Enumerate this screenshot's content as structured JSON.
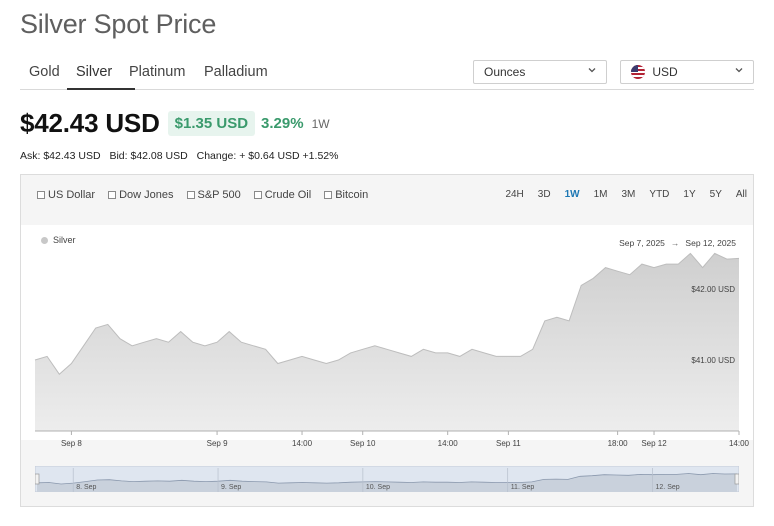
{
  "page": {
    "title": "Silver Spot Price"
  },
  "tabs": [
    {
      "label": "Gold",
      "active": false
    },
    {
      "label": "Silver",
      "active": true
    },
    {
      "label": "Platinum",
      "active": false
    },
    {
      "label": "Palladium",
      "active": false
    }
  ],
  "unit_select": {
    "value": "Ounces",
    "icon": "chevron-down-icon"
  },
  "currency_select": {
    "value": "USD",
    "icon": "us-flag-icon"
  },
  "price": {
    "main": "$42.43 USD",
    "change_amount": "$1.35 USD",
    "change_percent": "3.29%",
    "period": "1W",
    "positive_color": "#3a9a6c"
  },
  "quote": {
    "ask": "Ask: $42.43 USD",
    "bid": "Bid: $42.08 USD",
    "change": "Change: + $0.64 USD +1.52%"
  },
  "compare": [
    {
      "label": "US Dollar",
      "checked": false
    },
    {
      "label": "Dow Jones",
      "checked": false
    },
    {
      "label": "S&P 500",
      "checked": false
    },
    {
      "label": "Crude Oil",
      "checked": false
    },
    {
      "label": "Bitcoin",
      "checked": false
    }
  ],
  "ranges": [
    {
      "label": "24H",
      "active": false
    },
    {
      "label": "3D",
      "active": false
    },
    {
      "label": "1W",
      "active": true
    },
    {
      "label": "1M",
      "active": false
    },
    {
      "label": "3M",
      "active": false
    },
    {
      "label": "YTD",
      "active": false
    },
    {
      "label": "1Y",
      "active": false
    },
    {
      "label": "5Y",
      "active": false
    },
    {
      "label": "All",
      "active": false
    }
  ],
  "accent_color": "#1e78b4",
  "chart_data": {
    "type": "area",
    "series": [
      {
        "name": "Silver",
        "color": "#d4d4d4",
        "x": [
          "2025-09-07 18:00",
          "2025-09-07 20:00",
          "2025-09-07 22:00",
          "2025-09-08 00:00",
          "2025-09-08 02:00",
          "2025-09-08 04:00",
          "2025-09-08 06:00",
          "2025-09-08 08:00",
          "2025-09-08 10:00",
          "2025-09-08 12:00",
          "2025-09-08 14:00",
          "2025-09-08 16:00",
          "2025-09-08 18:00",
          "2025-09-08 20:00",
          "2025-09-08 22:00",
          "2025-09-09 00:00",
          "2025-09-09 02:00",
          "2025-09-09 04:00",
          "2025-09-09 06:00",
          "2025-09-09 08:00",
          "2025-09-09 10:00",
          "2025-09-09 12:00",
          "2025-09-09 14:00",
          "2025-09-09 16:00",
          "2025-09-09 18:00",
          "2025-09-09 20:00",
          "2025-09-09 22:00",
          "2025-09-10 00:00",
          "2025-09-10 02:00",
          "2025-09-10 04:00",
          "2025-09-10 06:00",
          "2025-09-10 08:00",
          "2025-09-10 10:00",
          "2025-09-10 12:00",
          "2025-09-10 14:00",
          "2025-09-10 16:00",
          "2025-09-10 18:00",
          "2025-09-10 20:00",
          "2025-09-10 22:00",
          "2025-09-11 00:00",
          "2025-09-11 02:00",
          "2025-09-11 04:00",
          "2025-09-11 06:00",
          "2025-09-11 08:00",
          "2025-09-11 10:00",
          "2025-09-11 12:00",
          "2025-09-11 14:00",
          "2025-09-11 16:00",
          "2025-09-11 18:00",
          "2025-09-11 20:00",
          "2025-09-11 22:00",
          "2025-09-12 00:00",
          "2025-09-12 02:00",
          "2025-09-12 04:00",
          "2025-09-12 06:00",
          "2025-09-12 08:00",
          "2025-09-12 10:00",
          "2025-09-12 12:00",
          "2025-09-12 14:00"
        ],
        "values": [
          41.0,
          41.05,
          40.8,
          40.95,
          41.2,
          41.45,
          41.5,
          41.3,
          41.2,
          41.25,
          41.3,
          41.25,
          41.4,
          41.25,
          41.2,
          41.25,
          41.4,
          41.25,
          41.2,
          41.15,
          40.95,
          41.0,
          41.05,
          41.0,
          40.95,
          41.0,
          41.1,
          41.15,
          41.2,
          41.15,
          41.1,
          41.05,
          41.15,
          41.1,
          41.1,
          41.05,
          41.15,
          41.1,
          41.05,
          41.05,
          41.05,
          41.15,
          41.55,
          41.6,
          41.55,
          42.05,
          42.15,
          42.3,
          42.25,
          42.2,
          42.35,
          42.3,
          42.35,
          42.35,
          42.5,
          42.3,
          42.5,
          42.42,
          42.43
        ]
      }
    ],
    "x_tick_labels": [
      "Sep 8",
      "Sep 9",
      "14:00",
      "Sep 10",
      "14:00",
      "Sep 11",
      "18:00",
      "Sep 12",
      "14:00"
    ],
    "x_tick_times": [
      "2025-09-08 00:00",
      "2025-09-09 00:00",
      "2025-09-09 14:00",
      "2025-09-10 00:00",
      "2025-09-10 14:00",
      "2025-09-11 00:00",
      "2025-09-11 18:00",
      "2025-09-12 00:00",
      "2025-09-12 14:00"
    ],
    "y_tick_labels": [
      "$41.00 USD",
      "$42.00 USD"
    ],
    "y_tick_values": [
      41.0,
      42.0
    ],
    "ylim": [
      40.0,
      42.9
    ],
    "legend": "top-left",
    "date_range": {
      "from": "Sep 7, 2025",
      "to": "Sep 12, 2025"
    },
    "navigator_labels": [
      "8. Sep",
      "9. Sep",
      "10. Sep",
      "11. Sep",
      "12. Sep"
    ],
    "grid": false
  }
}
